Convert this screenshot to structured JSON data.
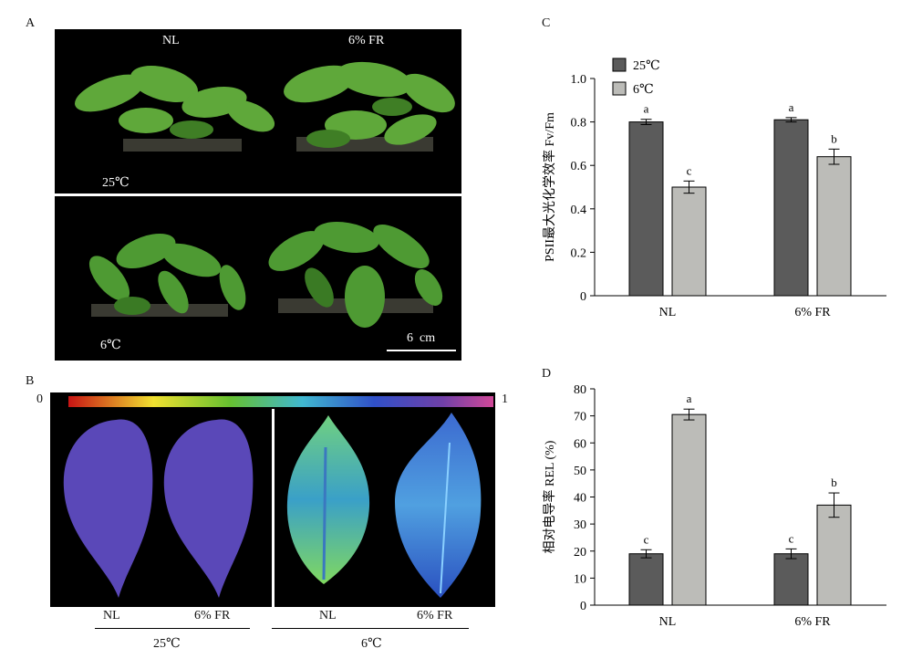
{
  "panels": {
    "A": {
      "letter": "A",
      "top_labels": [
        "NL",
        "6% FR"
      ],
      "temp_25": "25℃",
      "temp_6": "6℃",
      "scale_bar": "6  cm"
    },
    "B": {
      "letter": "B",
      "scale_min": "0",
      "scale_max": "1",
      "leaf_labels": [
        "NL",
        "6% FR",
        "NL",
        "6% FR"
      ],
      "group_labels": [
        "25℃",
        "6℃"
      ]
    },
    "C": {
      "letter": "C"
    },
    "D": {
      "letter": "D"
    }
  },
  "chart_data": [
    {
      "type": "bar",
      "ylabel": "PSII最大光化学效率 Fv/Fm",
      "categories": [
        "NL",
        "6% FR"
      ],
      "ylim": [
        0,
        1.0
      ],
      "yticks": [
        "0",
        "0.2",
        "0.4",
        "0.6",
        "0.8",
        "1.0"
      ],
      "legend": {
        "placement": "top-left",
        "entries": [
          "25℃",
          "6℃"
        ]
      },
      "series": [
        {
          "name": "25℃",
          "color": "#5b5b5b",
          "values": [
            0.8,
            0.81
          ],
          "errors": [
            0.012,
            0.01
          ],
          "letters": [
            "a",
            "a"
          ]
        },
        {
          "name": "6℃",
          "color": "#bcbcb8",
          "values": [
            0.5,
            0.64
          ],
          "errors": [
            0.028,
            0.035
          ],
          "letters": [
            "c",
            "b"
          ]
        }
      ]
    },
    {
      "type": "bar",
      "ylabel": "相对电导率 REL (%)",
      "categories": [
        "NL",
        "6% FR"
      ],
      "ylim": [
        0,
        80
      ],
      "yticks": [
        "0",
        "10",
        "20",
        "30",
        "40",
        "50",
        "60",
        "70",
        "80"
      ],
      "series": [
        {
          "name": "25℃",
          "color": "#5b5b5b",
          "values": [
            19.0,
            19.0
          ],
          "errors": [
            1.5,
            1.8
          ],
          "letters": [
            "c",
            "c"
          ]
        },
        {
          "name": "6℃",
          "color": "#bcbcb8",
          "values": [
            70.5,
            37.0
          ],
          "errors": [
            2.0,
            4.5
          ],
          "letters": [
            "a",
            "b"
          ]
        }
      ]
    }
  ]
}
